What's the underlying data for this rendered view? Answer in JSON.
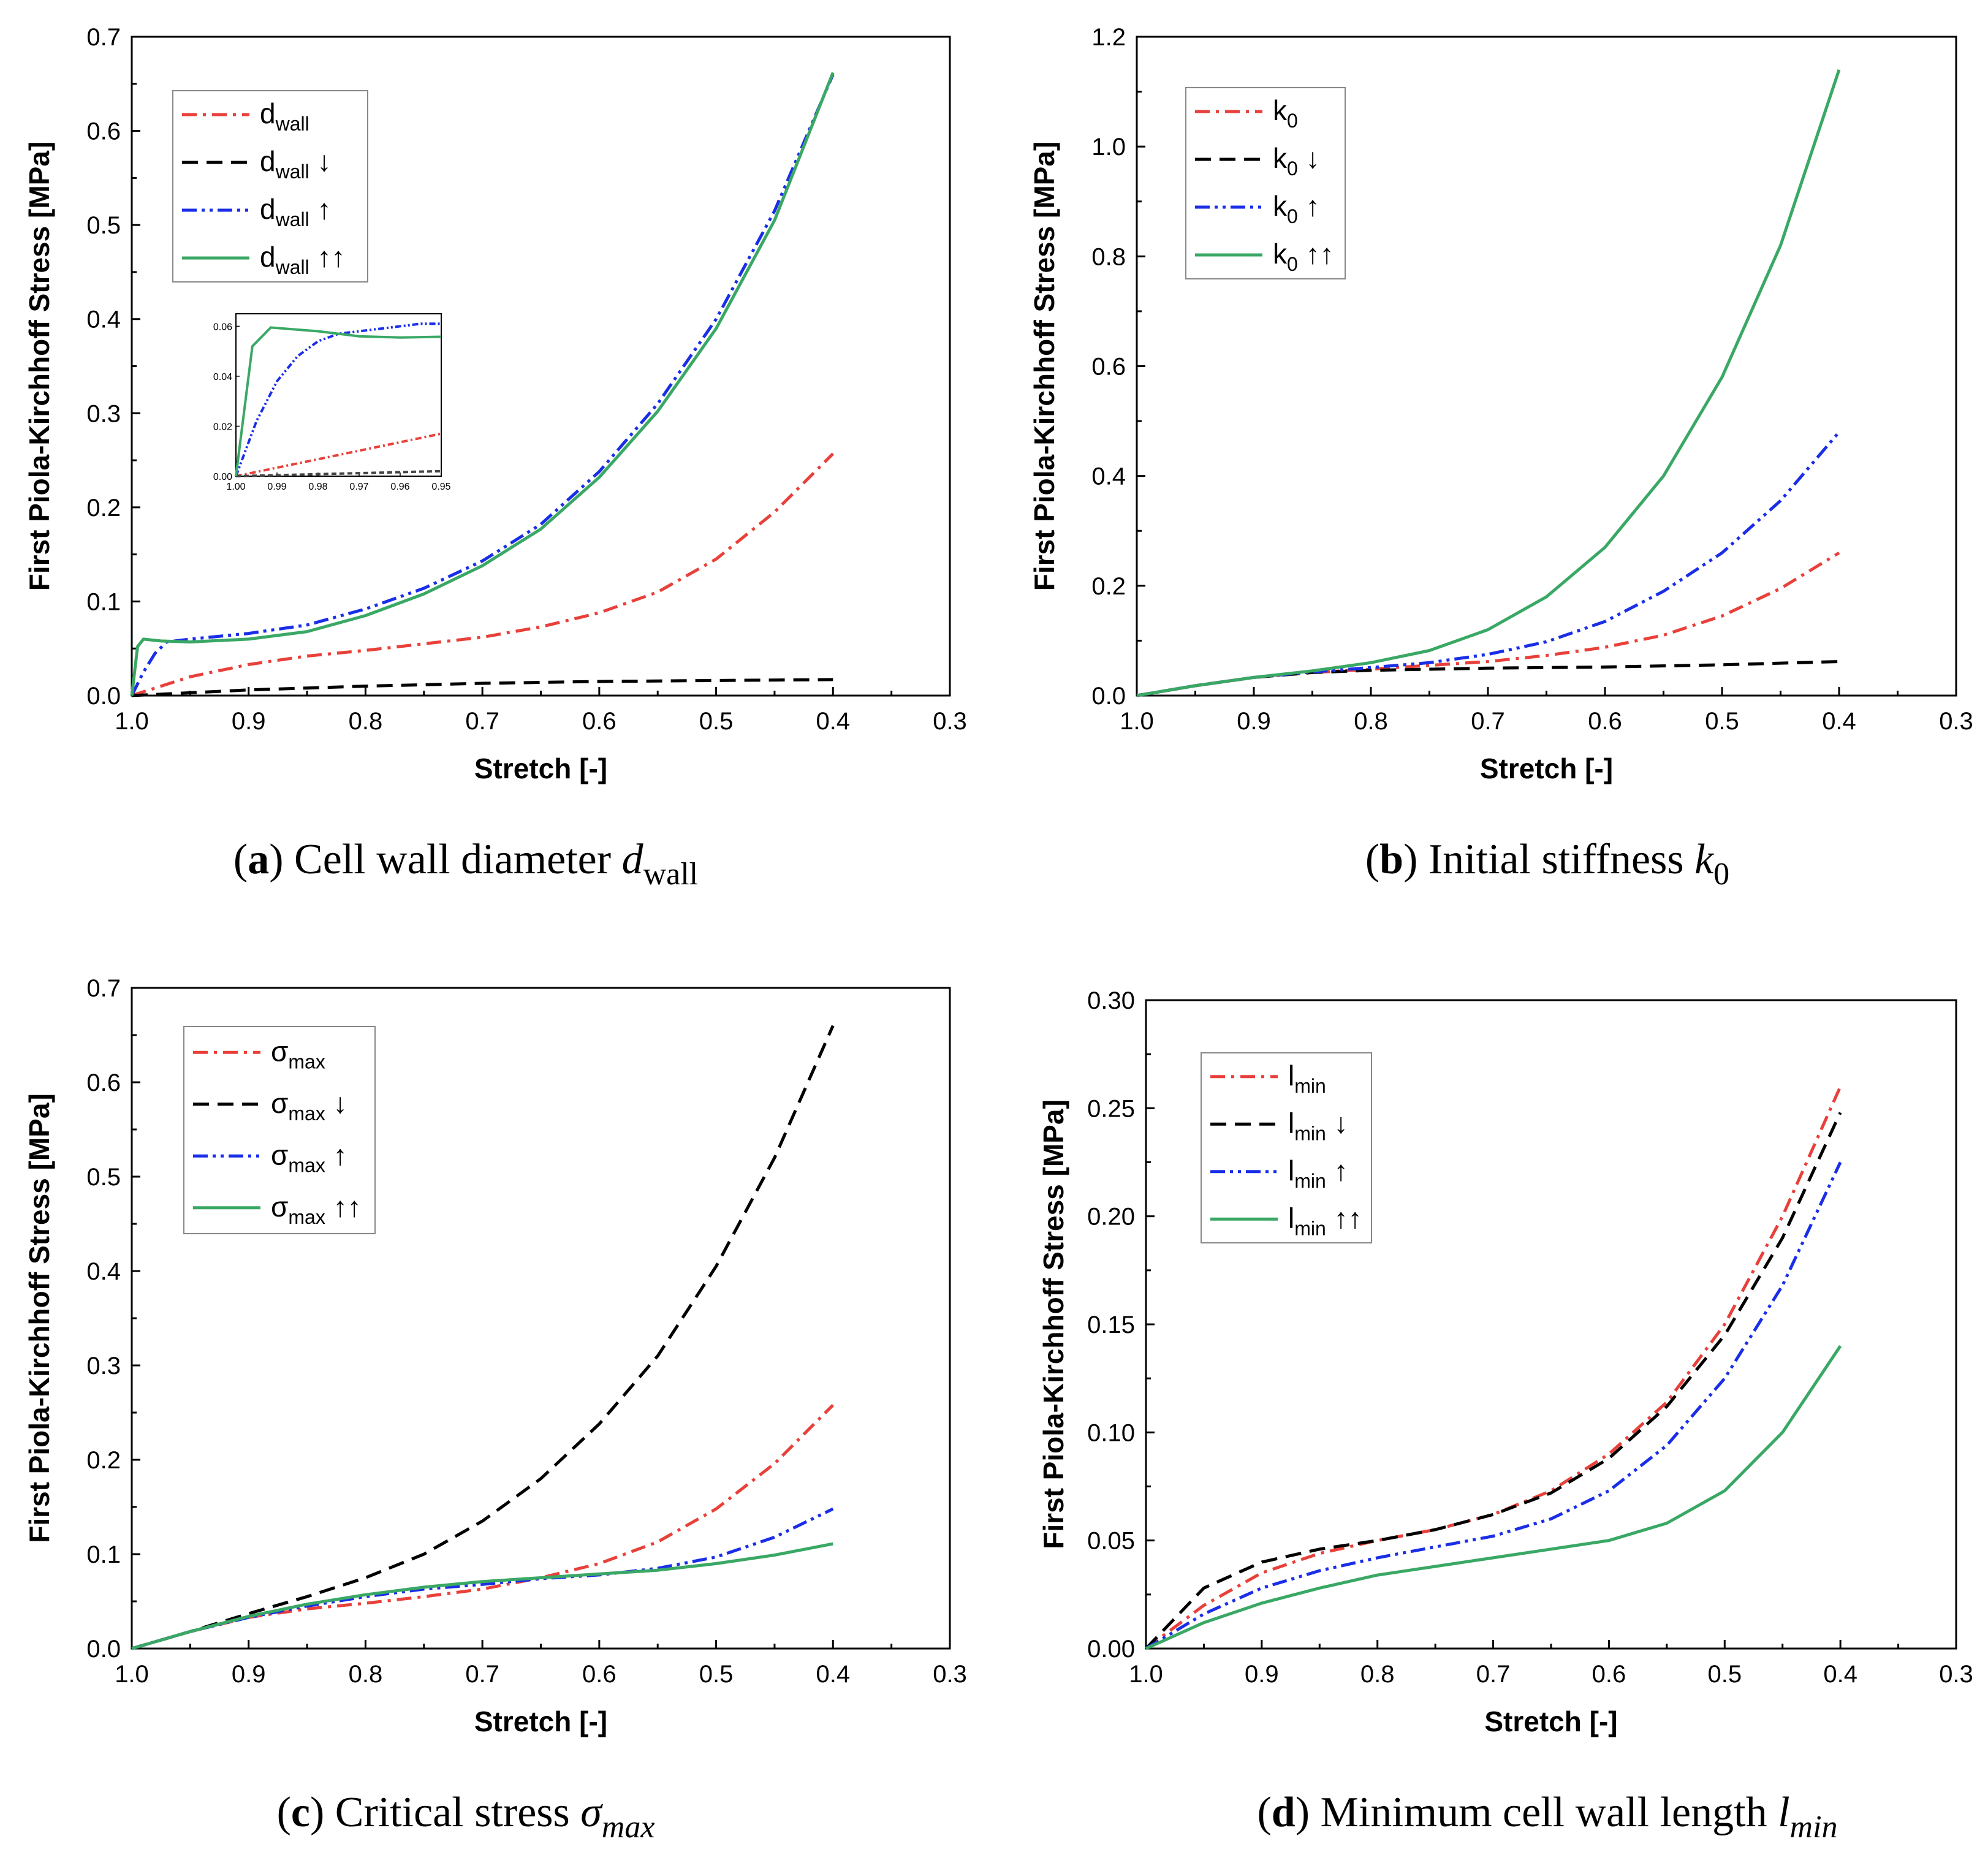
{
  "chart_data": [
    {
      "type": "line",
      "id": "a",
      "caption": {
        "letter": "(a)",
        "text": "Cell wall diameter",
        "symbol": "d",
        "subscript": "wall"
      },
      "xlabel": "Stretch [-]",
      "ylabel": "First Piola-Kirchhoff Stress [MPa]",
      "xlim": [
        1.0,
        0.3
      ],
      "ylim": [
        0,
        0.7
      ],
      "xticks": [
        "1.0",
        "0.9",
        "0.8",
        "0.7",
        "0.6",
        "0.5",
        "0.4",
        "0.3"
      ],
      "yticks": [
        "0.0",
        "0.1",
        "0.2",
        "0.3",
        "0.4",
        "0.5",
        "0.6",
        "0.7"
      ],
      "legend_position": "top-left",
      "series": [
        {
          "name": "d",
          "sub": "wall",
          "suffix": "",
          "color": "#e8403a",
          "dash": "dashdot",
          "x": [
            1.0,
            0.95,
            0.9,
            0.85,
            0.8,
            0.75,
            0.7,
            0.65,
            0.6,
            0.55,
            0.5,
            0.45,
            0.4
          ],
          "y": [
            0.0,
            0.02,
            0.033,
            0.042,
            0.048,
            0.055,
            0.062,
            0.073,
            0.088,
            0.11,
            0.145,
            0.195,
            0.257
          ]
        },
        {
          "name": "d",
          "sub": "wall",
          "suffix": " ↓",
          "color": "#000000",
          "dash": "dash",
          "x": [
            1.0,
            0.9,
            0.8,
            0.7,
            0.6,
            0.5,
            0.4
          ],
          "y": [
            0.0,
            0.006,
            0.01,
            0.013,
            0.015,
            0.016,
            0.017
          ]
        },
        {
          "name": "d",
          "sub": "wall",
          "suffix": " ↑",
          "color": "#1a2ee8",
          "dash": "dashdotdot",
          "x": [
            1.0,
            0.99,
            0.98,
            0.97,
            0.95,
            0.9,
            0.85,
            0.8,
            0.75,
            0.7,
            0.65,
            0.6,
            0.55,
            0.5,
            0.45,
            0.4
          ],
          "y": [
            0.0,
            0.025,
            0.045,
            0.057,
            0.06,
            0.066,
            0.075,
            0.092,
            0.114,
            0.143,
            0.182,
            0.238,
            0.31,
            0.4,
            0.515,
            0.66
          ]
        },
        {
          "name": "d",
          "sub": "wall",
          "suffix": " ↑↑",
          "color": "#3aa865",
          "dash": "solid",
          "x": [
            1.0,
            0.995,
            0.99,
            0.975,
            0.95,
            0.9,
            0.85,
            0.8,
            0.75,
            0.7,
            0.65,
            0.6,
            0.55,
            0.5,
            0.45,
            0.4
          ],
          "y": [
            0.0,
            0.052,
            0.06,
            0.058,
            0.057,
            0.06,
            0.068,
            0.085,
            0.108,
            0.138,
            0.177,
            0.232,
            0.302,
            0.39,
            0.505,
            0.662
          ]
        }
      ],
      "inset": {
        "xlim": [
          1.0,
          0.95
        ],
        "ylim": [
          0,
          0.065
        ],
        "xticks": [
          "1.00",
          "0.99",
          "0.98",
          "0.97",
          "0.96",
          "0.95"
        ],
        "yticks": [
          "0.00",
          "0.02",
          "0.04",
          "0.06"
        ],
        "series": [
          {
            "color": "#e8403a",
            "dash": "dashdot",
            "x": [
              1.0,
              0.95
            ],
            "y": [
              0.0,
              0.017
            ]
          },
          {
            "color": "#444444",
            "dash": "dash",
            "x": [
              1.0,
              0.95
            ],
            "y": [
              0.0,
              0.002
            ]
          },
          {
            "color": "#1a2ee8",
            "dash": "dashdotdot",
            "x": [
              1.0,
              0.995,
              0.99,
              0.985,
              0.98,
              0.975,
              0.97,
              0.965,
              0.96,
              0.955,
              0.95
            ],
            "y": [
              0.0,
              0.022,
              0.038,
              0.048,
              0.054,
              0.057,
              0.058,
              0.059,
              0.06,
              0.061,
              0.061
            ]
          },
          {
            "color": "#3aa865",
            "dash": "solid",
            "x": [
              1.0,
              0.996,
              0.9915,
              0.98,
              0.97,
              0.96,
              0.95
            ],
            "y": [
              0.0,
              0.052,
              0.0595,
              0.058,
              0.056,
              0.0555,
              0.0558
            ]
          }
        ]
      }
    },
    {
      "type": "line",
      "id": "b",
      "caption": {
        "letter": "(b)",
        "text": "Initial stiffness",
        "symbol": "k",
        "subscript": "0"
      },
      "xlabel": "Stretch [-]",
      "ylabel": "First Piola-Kirchhoff Stress [MPa]",
      "xlim": [
        1.0,
        0.3
      ],
      "ylim": [
        0,
        1.2
      ],
      "xticks": [
        "1.0",
        "0.9",
        "0.8",
        "0.7",
        "0.6",
        "0.5",
        "0.4",
        "0.3"
      ],
      "yticks": [
        "0.0",
        "0.2",
        "0.4",
        "0.6",
        "0.8",
        "1.0",
        "1.2"
      ],
      "legend_position": "top-left",
      "series": [
        {
          "name": "k",
          "sub": "0",
          "suffix": "",
          "color": "#e8403a",
          "dash": "dashdot",
          "x": [
            1.0,
            0.95,
            0.9,
            0.85,
            0.8,
            0.75,
            0.7,
            0.65,
            0.6,
            0.55,
            0.5,
            0.45,
            0.4
          ],
          "y": [
            0.0,
            0.018,
            0.033,
            0.042,
            0.048,
            0.055,
            0.062,
            0.073,
            0.088,
            0.11,
            0.145,
            0.195,
            0.26
          ]
        },
        {
          "name": "k",
          "sub": "0",
          "suffix": " ↓",
          "color": "#000000",
          "dash": "dash",
          "x": [
            1.0,
            0.95,
            0.9,
            0.85,
            0.8,
            0.75,
            0.7,
            0.6,
            0.5,
            0.4
          ],
          "y": [
            0.0,
            0.018,
            0.033,
            0.042,
            0.046,
            0.048,
            0.05,
            0.052,
            0.056,
            0.062
          ]
        },
        {
          "name": "k",
          "sub": "0",
          "suffix": " ↑",
          "color": "#1a2ee8",
          "dash": "dashdotdot",
          "x": [
            1.0,
            0.95,
            0.9,
            0.85,
            0.8,
            0.75,
            0.7,
            0.65,
            0.6,
            0.55,
            0.5,
            0.45,
            0.4
          ],
          "y": [
            0.0,
            0.018,
            0.033,
            0.043,
            0.051,
            0.06,
            0.075,
            0.098,
            0.135,
            0.19,
            0.26,
            0.355,
            0.48
          ]
        },
        {
          "name": "k",
          "sub": "0",
          "suffix": " ↑↑",
          "color": "#3aa865",
          "dash": "solid",
          "x": [
            1.0,
            0.95,
            0.9,
            0.85,
            0.8,
            0.75,
            0.7,
            0.65,
            0.6,
            0.55,
            0.5,
            0.45,
            0.4
          ],
          "y": [
            0.0,
            0.018,
            0.033,
            0.045,
            0.06,
            0.082,
            0.12,
            0.18,
            0.27,
            0.4,
            0.58,
            0.82,
            1.14
          ]
        }
      ]
    },
    {
      "type": "line",
      "id": "c",
      "caption": {
        "letter": "(c)",
        "text": "Critical stress",
        "symbol": "σ",
        "subscript": "max"
      },
      "xlabel": "Stretch [-]",
      "ylabel": "First Piola-Kirchhoff Stress [MPa]",
      "xlim": [
        1.0,
        0.3
      ],
      "ylim": [
        0,
        0.7
      ],
      "xticks": [
        "1.0",
        "0.9",
        "0.8",
        "0.7",
        "0.6",
        "0.5",
        "0.4",
        "0.3"
      ],
      "yticks": [
        "0.0",
        "0.1",
        "0.2",
        "0.3",
        "0.4",
        "0.5",
        "0.6",
        "0.7"
      ],
      "legend_position": "top-left",
      "series": [
        {
          "name": "σ",
          "sub": "max",
          "suffix": "",
          "color": "#e8403a",
          "dash": "dashdot",
          "x": [
            1.0,
            0.95,
            0.9,
            0.85,
            0.8,
            0.75,
            0.7,
            0.65,
            0.6,
            0.55,
            0.5,
            0.45,
            0.4
          ],
          "y": [
            0.0,
            0.018,
            0.033,
            0.042,
            0.048,
            0.055,
            0.063,
            0.075,
            0.09,
            0.113,
            0.148,
            0.196,
            0.258
          ]
        },
        {
          "name": "σ",
          "sub": "max",
          "suffix": "  ↓",
          "color": "#000000",
          "dash": "dash",
          "x": [
            1.0,
            0.95,
            0.9,
            0.85,
            0.8,
            0.75,
            0.7,
            0.65,
            0.6,
            0.55,
            0.5,
            0.45,
            0.4
          ],
          "y": [
            0.0,
            0.018,
            0.037,
            0.055,
            0.075,
            0.1,
            0.135,
            0.18,
            0.238,
            0.31,
            0.405,
            0.52,
            0.66
          ]
        },
        {
          "name": "σ",
          "sub": "max",
          "suffix": " ↑",
          "color": "#1a2ee8",
          "dash": "dashdotdot",
          "x": [
            1.0,
            0.95,
            0.9,
            0.85,
            0.8,
            0.75,
            0.7,
            0.65,
            0.6,
            0.55,
            0.5,
            0.45,
            0.4
          ],
          "y": [
            0.0,
            0.018,
            0.033,
            0.045,
            0.055,
            0.063,
            0.068,
            0.074,
            0.078,
            0.085,
            0.097,
            0.118,
            0.148
          ]
        },
        {
          "name": "σ",
          "sub": "max",
          "suffix": " ↑↑",
          "color": "#3aa865",
          "dash": "solid",
          "x": [
            1.0,
            0.95,
            0.9,
            0.85,
            0.8,
            0.75,
            0.7,
            0.65,
            0.6,
            0.55,
            0.5,
            0.45,
            0.4
          ],
          "y": [
            0.0,
            0.018,
            0.034,
            0.047,
            0.057,
            0.065,
            0.071,
            0.075,
            0.079,
            0.083,
            0.09,
            0.099,
            0.111
          ]
        }
      ]
    },
    {
      "type": "line",
      "id": "d",
      "caption": {
        "letter": "(d)",
        "text": "Minimum cell wall length",
        "symbol": "l",
        "subscript": "min"
      },
      "xlabel": "Stretch [-]",
      "ylabel": "First Piola-Kirchhoff Stress [MPa]",
      "xlim": [
        1.0,
        0.3
      ],
      "ylim": [
        0,
        0.3
      ],
      "xticks": [
        "1.0",
        "0.9",
        "0.8",
        "0.7",
        "0.6",
        "0.5",
        "0.4",
        "0.3"
      ],
      "yticks": [
        "0.00",
        "0.05",
        "0.10",
        "0.15",
        "0.20",
        "0.25",
        "0.30"
      ],
      "legend_position": "top-left",
      "series": [
        {
          "name": "l",
          "sub": "min",
          "suffix": "",
          "color": "#e8403a",
          "dash": "dashdot",
          "x": [
            1.0,
            0.95,
            0.9,
            0.85,
            0.8,
            0.75,
            0.7,
            0.65,
            0.6,
            0.55,
            0.5,
            0.45,
            0.4
          ],
          "y": [
            0.0,
            0.02,
            0.035,
            0.044,
            0.05,
            0.055,
            0.062,
            0.073,
            0.09,
            0.114,
            0.15,
            0.2,
            0.26
          ]
        },
        {
          "name": "l",
          "sub": "min",
          "suffix": " ↓",
          "color": "#000000",
          "dash": "dash",
          "x": [
            1.0,
            0.95,
            0.9,
            0.85,
            0.8,
            0.75,
            0.7,
            0.65,
            0.6,
            0.55,
            0.5,
            0.45,
            0.4
          ],
          "y": [
            0.0,
            0.028,
            0.04,
            0.046,
            0.05,
            0.055,
            0.062,
            0.072,
            0.088,
            0.112,
            0.145,
            0.19,
            0.248
          ]
        },
        {
          "name": "l",
          "sub": "min",
          "suffix": " ↑",
          "color": "#1a2ee8",
          "dash": "dashdotdot",
          "x": [
            1.0,
            0.95,
            0.9,
            0.85,
            0.8,
            0.75,
            0.7,
            0.65,
            0.6,
            0.55,
            0.5,
            0.45,
            0.4
          ],
          "y": [
            0.0,
            0.016,
            0.028,
            0.036,
            0.042,
            0.047,
            0.052,
            0.06,
            0.073,
            0.094,
            0.125,
            0.168,
            0.225
          ]
        },
        {
          "name": "l",
          "sub": "min",
          "suffix": " ↑↑",
          "color": "#3aa865",
          "dash": "solid",
          "x": [
            1.0,
            0.95,
            0.9,
            0.85,
            0.8,
            0.75,
            0.7,
            0.65,
            0.6,
            0.55,
            0.5,
            0.45,
            0.4
          ],
          "y": [
            0.0,
            0.012,
            0.021,
            0.028,
            0.034,
            0.038,
            0.042,
            0.046,
            0.05,
            0.058,
            0.073,
            0.1,
            0.14
          ]
        }
      ]
    }
  ]
}
